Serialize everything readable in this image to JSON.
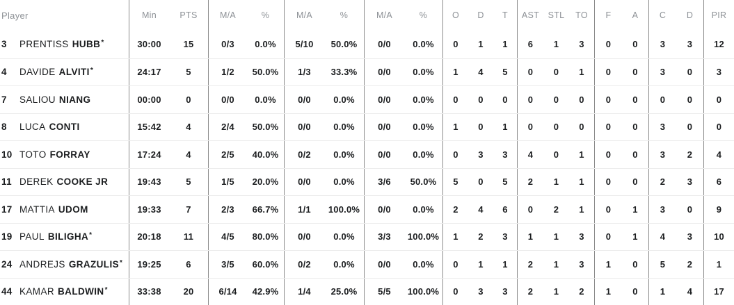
{
  "table": {
    "columns": {
      "player": "Player",
      "min": "Min",
      "pts": "PTS",
      "ma2": "M/A",
      "pct2": "%",
      "ma3": "M/A",
      "pct3": "%",
      "maft": "M/A",
      "pctft": "%",
      "oreb": "O",
      "dreb": "D",
      "treb": "T",
      "ast": "AST",
      "stl": "STL",
      "to": "TO",
      "f": "F",
      "a": "A",
      "c": "C",
      "d": "D",
      "pir": "PIR"
    },
    "colors": {
      "header_text": "#8d9196",
      "body_text": "#1b1d1f",
      "vertical_divider": "#8a8a8a",
      "row_separator": "#ececec",
      "background": "#ffffff"
    },
    "players": [
      {
        "num": "3",
        "first": "PRENTISS",
        "last": "HUBB",
        "starter": "*",
        "min": "30:00",
        "pts": "15",
        "p2ma": "0/3",
        "p2pct": "0.0%",
        "p3ma": "5/10",
        "p3pct": "50.0%",
        "ftma": "0/0",
        "ftpct": "0.0%",
        "oreb": "0",
        "dreb": "1",
        "treb": "1",
        "ast": "6",
        "stl": "1",
        "to": "3",
        "f": "0",
        "a": "0",
        "c": "3",
        "d": "3",
        "pir": "12"
      },
      {
        "num": "4",
        "first": "DAVIDE",
        "last": "ALVITI",
        "starter": "*",
        "min": "24:17",
        "pts": "5",
        "p2ma": "1/2",
        "p2pct": "50.0%",
        "p3ma": "1/3",
        "p3pct": "33.3%",
        "ftma": "0/0",
        "ftpct": "0.0%",
        "oreb": "1",
        "dreb": "4",
        "treb": "5",
        "ast": "0",
        "stl": "0",
        "to": "1",
        "f": "0",
        "a": "0",
        "c": "3",
        "d": "0",
        "pir": "3"
      },
      {
        "num": "7",
        "first": "SALIOU",
        "last": "NIANG",
        "starter": "",
        "min": "00:00",
        "pts": "0",
        "p2ma": "0/0",
        "p2pct": "0.0%",
        "p3ma": "0/0",
        "p3pct": "0.0%",
        "ftma": "0/0",
        "ftpct": "0.0%",
        "oreb": "0",
        "dreb": "0",
        "treb": "0",
        "ast": "0",
        "stl": "0",
        "to": "0",
        "f": "0",
        "a": "0",
        "c": "0",
        "d": "0",
        "pir": "0"
      },
      {
        "num": "8",
        "first": "LUCA",
        "last": "CONTI",
        "starter": "",
        "min": "15:42",
        "pts": "4",
        "p2ma": "2/4",
        "p2pct": "50.0%",
        "p3ma": "0/0",
        "p3pct": "0.0%",
        "ftma": "0/0",
        "ftpct": "0.0%",
        "oreb": "1",
        "dreb": "0",
        "treb": "1",
        "ast": "0",
        "stl": "0",
        "to": "0",
        "f": "0",
        "a": "0",
        "c": "3",
        "d": "0",
        "pir": "0"
      },
      {
        "num": "10",
        "first": "TOTO",
        "last": "FORRAY",
        "starter": "",
        "min": "17:24",
        "pts": "4",
        "p2ma": "2/5",
        "p2pct": "40.0%",
        "p3ma": "0/2",
        "p3pct": "0.0%",
        "ftma": "0/0",
        "ftpct": "0.0%",
        "oreb": "0",
        "dreb": "3",
        "treb": "3",
        "ast": "4",
        "stl": "0",
        "to": "1",
        "f": "0",
        "a": "0",
        "c": "3",
        "d": "2",
        "pir": "4"
      },
      {
        "num": "11",
        "first": "DEREK",
        "last": "COOKE JR",
        "starter": "",
        "min": "19:43",
        "pts": "5",
        "p2ma": "1/5",
        "p2pct": "20.0%",
        "p3ma": "0/0",
        "p3pct": "0.0%",
        "ftma": "3/6",
        "ftpct": "50.0%",
        "oreb": "5",
        "dreb": "0",
        "treb": "5",
        "ast": "2",
        "stl": "1",
        "to": "1",
        "f": "0",
        "a": "0",
        "c": "2",
        "d": "3",
        "pir": "6"
      },
      {
        "num": "17",
        "first": "MATTIA",
        "last": "UDOM",
        "starter": "",
        "min": "19:33",
        "pts": "7",
        "p2ma": "2/3",
        "p2pct": "66.7%",
        "p3ma": "1/1",
        "p3pct": "100.0%",
        "ftma": "0/0",
        "ftpct": "0.0%",
        "oreb": "2",
        "dreb": "4",
        "treb": "6",
        "ast": "0",
        "stl": "2",
        "to": "1",
        "f": "0",
        "a": "1",
        "c": "3",
        "d": "0",
        "pir": "9"
      },
      {
        "num": "19",
        "first": "PAUL",
        "last": "BILIGHA",
        "starter": "*",
        "min": "20:18",
        "pts": "11",
        "p2ma": "4/5",
        "p2pct": "80.0%",
        "p3ma": "0/0",
        "p3pct": "0.0%",
        "ftma": "3/3",
        "ftpct": "100.0%",
        "oreb": "1",
        "dreb": "2",
        "treb": "3",
        "ast": "1",
        "stl": "1",
        "to": "3",
        "f": "0",
        "a": "1",
        "c": "4",
        "d": "3",
        "pir": "10"
      },
      {
        "num": "24",
        "first": "ANDREJS",
        "last": "GRAZULIS",
        "starter": "*",
        "min": "19:25",
        "pts": "6",
        "p2ma": "3/5",
        "p2pct": "60.0%",
        "p3ma": "0/2",
        "p3pct": "0.0%",
        "ftma": "0/0",
        "ftpct": "0.0%",
        "oreb": "0",
        "dreb": "1",
        "treb": "1",
        "ast": "2",
        "stl": "1",
        "to": "3",
        "f": "1",
        "a": "0",
        "c": "5",
        "d": "2",
        "pir": "1"
      },
      {
        "num": "44",
        "first": "KAMAR",
        "last": "BALDWIN",
        "starter": "*",
        "min": "33:38",
        "pts": "20",
        "p2ma": "6/14",
        "p2pct": "42.9%",
        "p3ma": "1/4",
        "p3pct": "25.0%",
        "ftma": "5/5",
        "ftpct": "100.0%",
        "oreb": "0",
        "dreb": "3",
        "treb": "3",
        "ast": "2",
        "stl": "1",
        "to": "2",
        "f": "1",
        "a": "0",
        "c": "1",
        "d": "4",
        "pir": "17"
      }
    ]
  }
}
